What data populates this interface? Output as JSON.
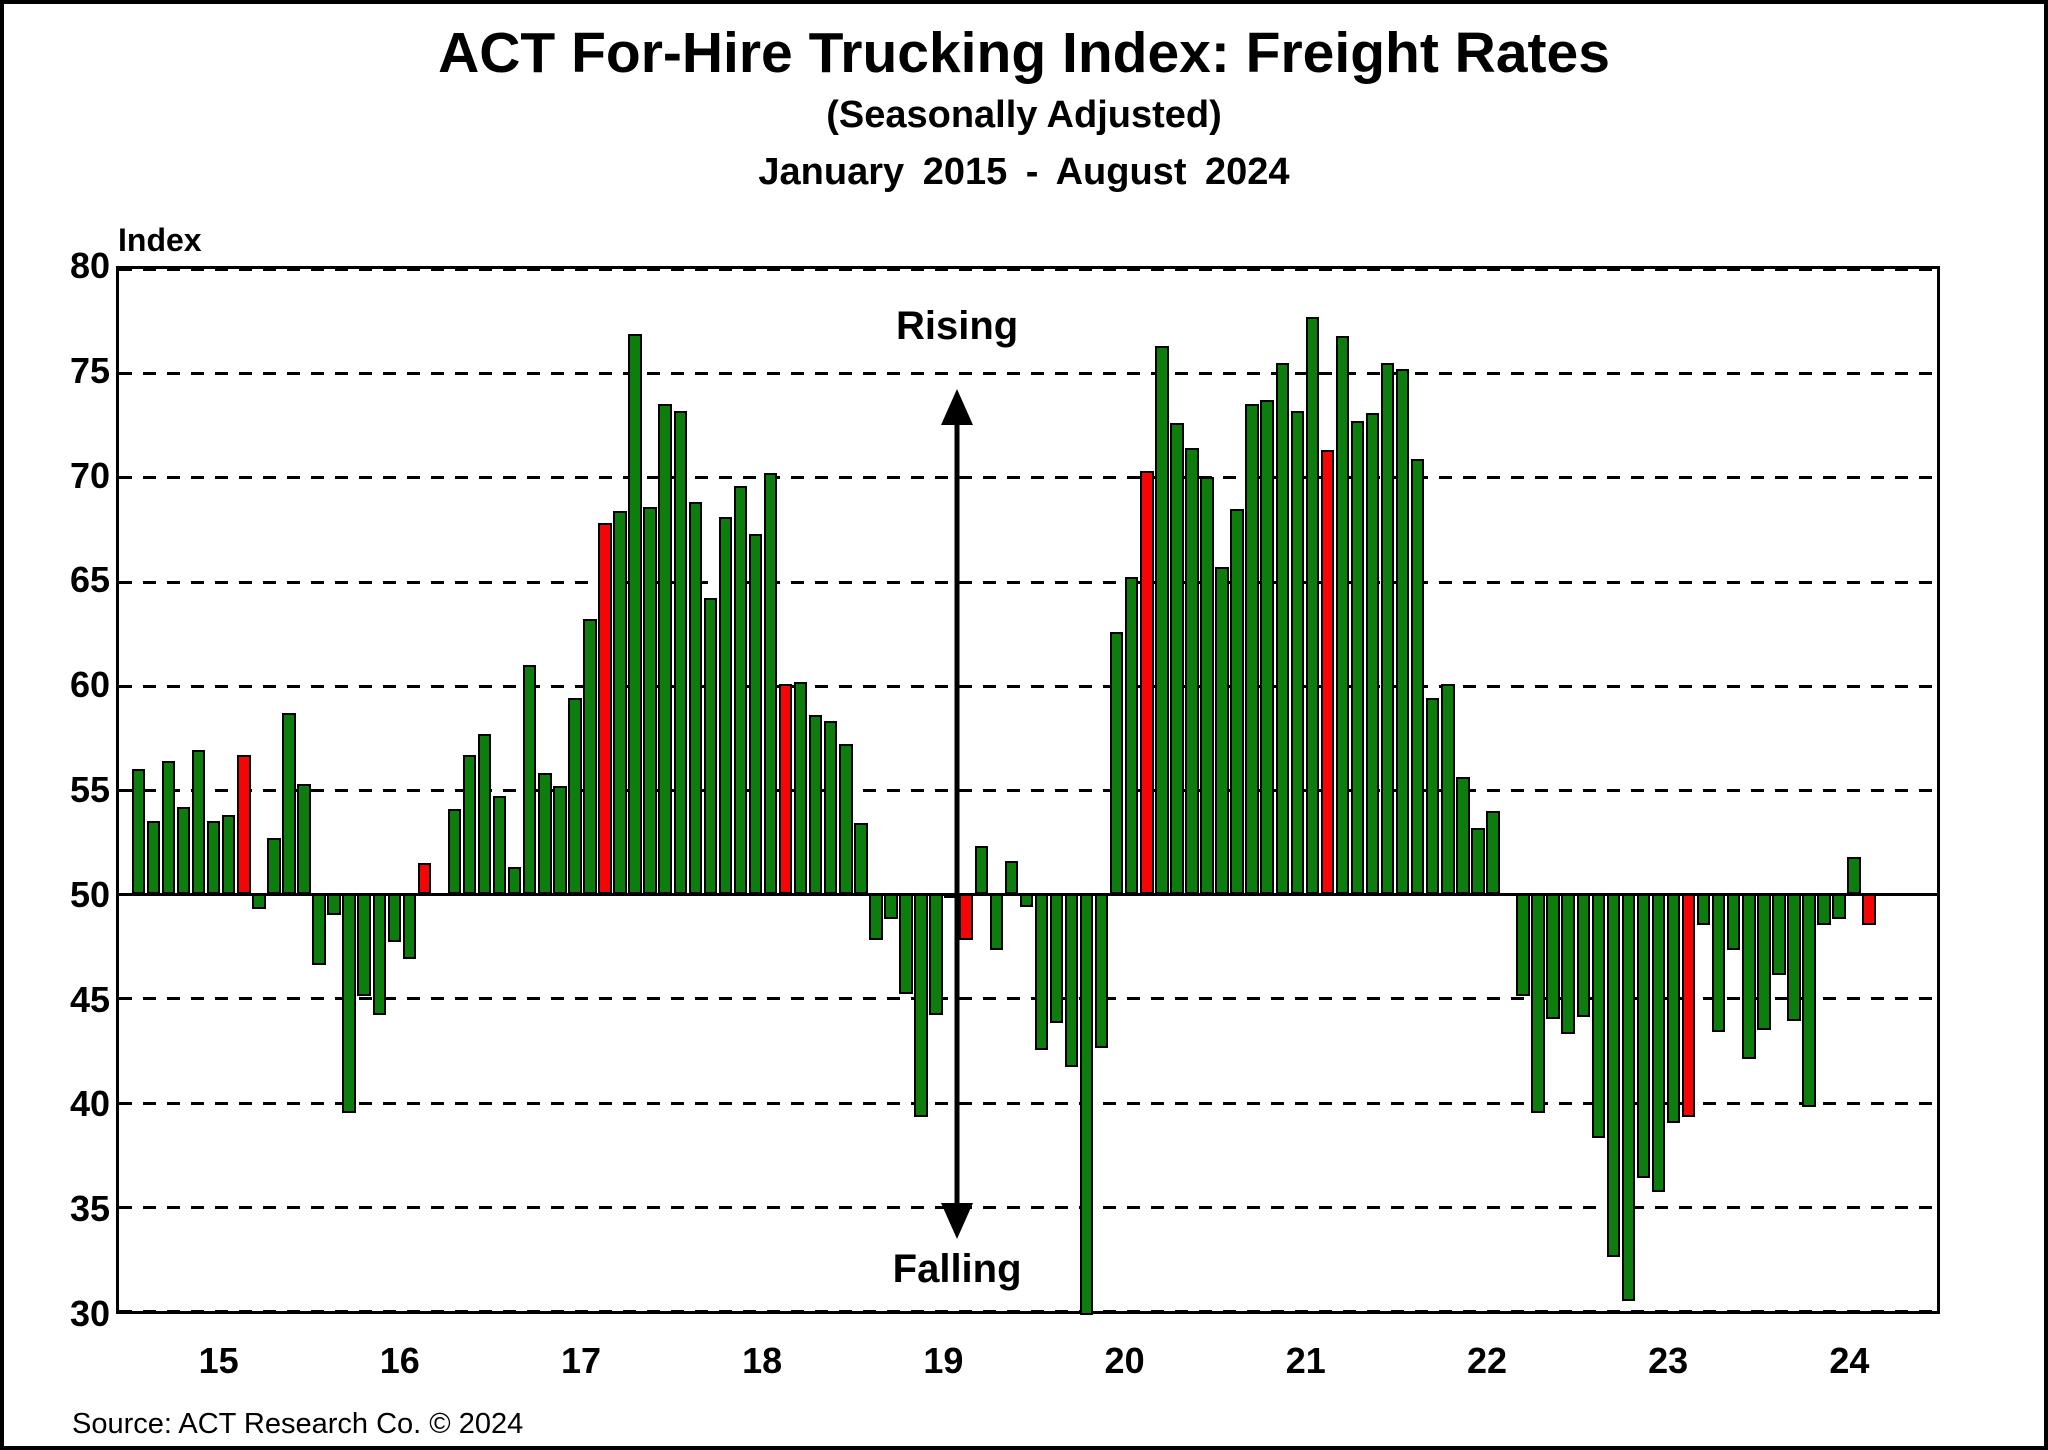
{
  "title": "ACT For-Hire Trucking Index: Freight Rates",
  "subtitle": "(Seasonally Adjusted)",
  "period": "January 2015 - August 2024",
  "y_axis_label": "Index",
  "source": "Source: ACT Research Co. © 2024",
  "annotations": {
    "rising": "Rising",
    "falling": "Falling"
  },
  "colors": {
    "bar_green": "#0d7d0d",
    "bar_red": "#f50505",
    "bar_border": "#000000",
    "background": "#ffffff",
    "axis": "#000000"
  },
  "chart_data": {
    "type": "bar",
    "title": "ACT For-Hire Trucking Index: Freight Rates",
    "subtitle": "(Seasonally Adjusted)",
    "period_label": "January 2015 - August 2024",
    "ylabel": "Index",
    "ylim": [
      30,
      80
    ],
    "baseline": 50,
    "y_ticks": [
      80,
      75,
      70,
      65,
      60,
      55,
      50,
      45,
      40,
      35,
      30
    ],
    "x_tick_years": [
      "15",
      "16",
      "17",
      "18",
      "19",
      "20",
      "21",
      "22",
      "23",
      "24"
    ],
    "grid": "dashed horizontal every 5 units, solid baseline at 50",
    "start_month": "2015-01",
    "end_month": "2024-08",
    "series_by_year": {
      "2015": [
        56.0,
        53.5,
        56.4,
        54.2,
        56.9,
        53.5,
        53.8,
        56.7,
        49.3,
        52.7,
        58.7,
        55.3
      ],
      "2016": [
        46.6,
        49.0,
        39.5,
        45.1,
        44.2,
        47.7,
        46.9,
        51.5,
        50.0,
        54.1,
        56.7,
        57.7
      ],
      "2017": [
        54.7,
        51.3,
        61.0,
        55.8,
        55.2,
        59.4,
        63.2,
        67.8,
        68.4,
        76.9,
        68.6,
        73.5
      ],
      "2018": [
        73.2,
        68.8,
        64.2,
        68.1,
        69.6,
        67.3,
        70.2,
        60.1,
        60.2,
        58.6,
        58.3,
        57.2
      ],
      "2019": [
        53.4,
        47.8,
        48.8,
        45.2,
        39.3,
        44.2,
        49.8,
        47.8,
        52.3,
        47.3,
        51.6,
        49.4
      ],
      "2020": [
        42.5,
        43.8,
        41.7,
        29.8,
        42.6,
        62.6,
        65.2,
        70.3,
        76.3,
        72.6,
        71.4,
        70.0
      ],
      "2021": [
        65.7,
        68.5,
        73.5,
        73.7,
        75.5,
        73.2,
        77.7,
        71.3,
        76.8,
        72.7,
        73.1,
        75.5
      ],
      "2022": [
        75.2,
        70.9,
        59.4,
        60.1,
        55.6,
        53.2,
        54.0,
        50.0,
        45.1,
        39.5,
        44.0,
        43.3
      ],
      "2023": [
        44.1,
        38.3,
        32.6,
        30.5,
        36.4,
        35.7,
        39.0,
        39.3,
        48.5,
        43.4,
        47.3,
        42.1
      ],
      "2024": [
        43.5,
        46.1,
        43.9,
        39.8,
        48.5,
        48.8,
        51.8,
        48.5
      ]
    },
    "red_bar_months": [
      "2015-08",
      "2016-08",
      "2017-08",
      "2018-08",
      "2019-08",
      "2020-08",
      "2021-08",
      "2022-08",
      "2023-08",
      "2024-08"
    ],
    "annotation_arrow": {
      "label_top": "Rising",
      "label_bottom": "Falling",
      "style": "vertical double-headed arrow between 'Rising' and 'Falling' labels near 2019"
    }
  }
}
